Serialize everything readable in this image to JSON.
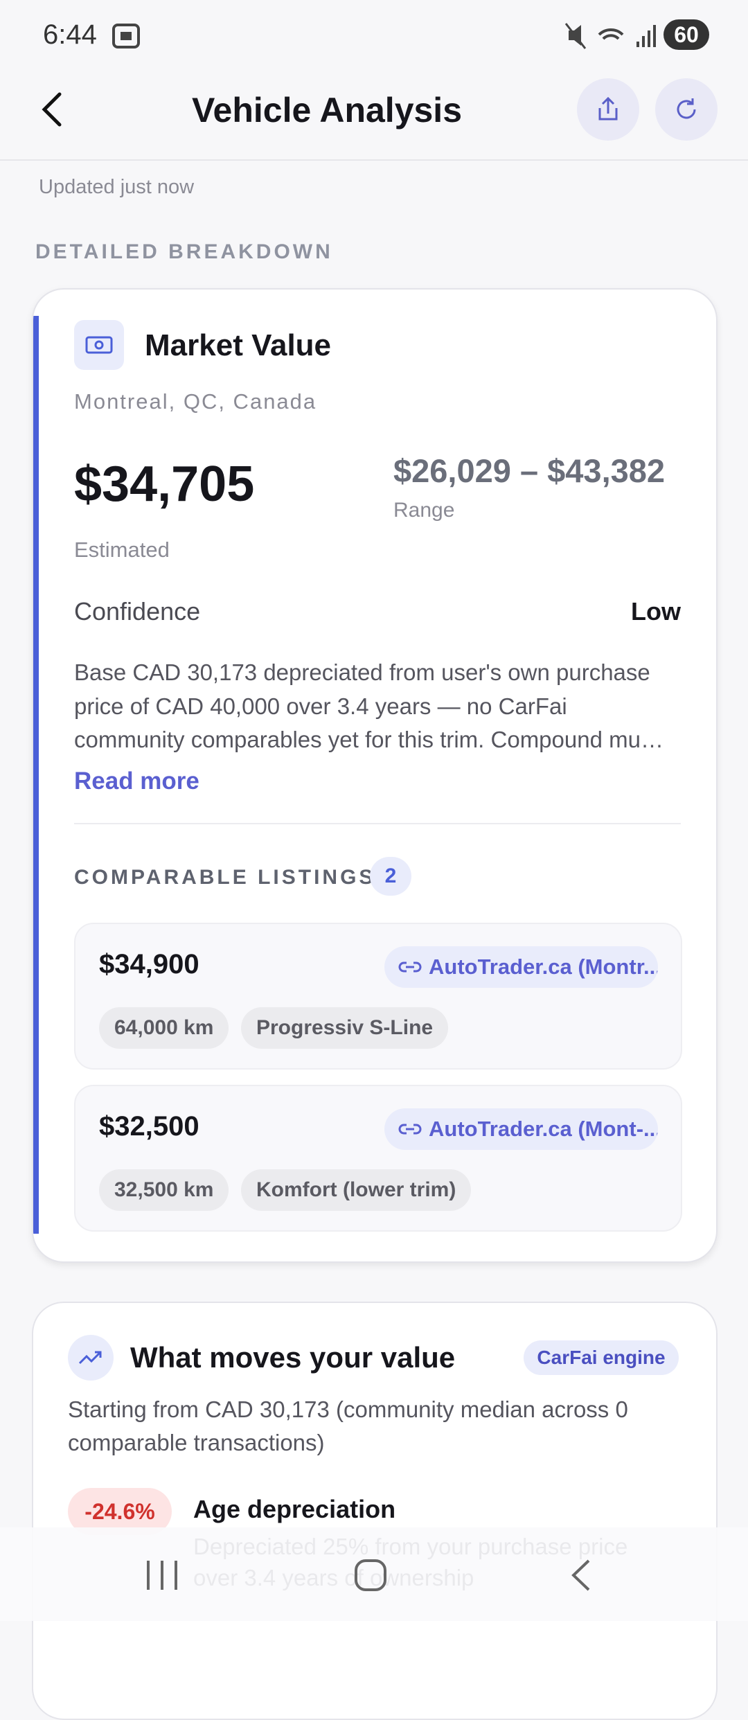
{
  "status_bar": {
    "time": "6:44",
    "battery": "60"
  },
  "header": {
    "title": "Vehicle Analysis"
  },
  "updated": "Updated just now",
  "section_title": "DETAILED BREAKDOWN",
  "market_card": {
    "title": "Market Value",
    "location": "Montreal, QC, Canada",
    "value": "$34,705",
    "value_caption": "Estimated",
    "range": "$26,029 – $43,382",
    "range_caption": "Range",
    "confidence_label": "Confidence",
    "confidence_value": "Low",
    "description": "Base CAD 30,173 depreciated from user's own purchase price of CAD 40,000 over 3.4 years — no CarFai community comparables yet for this trim. Compound mu…",
    "read_more": "Read more",
    "listings_title": "COMPARABLE LISTINGS",
    "listings_count": "2",
    "listings": [
      {
        "price": "$34,900",
        "source": "AutoTrader.ca (Montr...",
        "chips": [
          "64,000 km",
          "Progressiv S-Line"
        ]
      },
      {
        "price": "$32,500",
        "source": "AutoTrader.ca (Mont-...",
        "chips": [
          "32,500 km",
          "Komfort (lower trim)"
        ]
      }
    ]
  },
  "moves_card": {
    "title": "What moves your value",
    "badge": "CarFai engine",
    "intro": "Starting from CAD 30,173 (community median across 0 comparable transactions)",
    "factors": [
      {
        "change": "-24.6%",
        "title": "Age depreciation",
        "detail": "Depreciated 25% from your purchase price over 3.4 years of ownership"
      }
    ]
  }
}
